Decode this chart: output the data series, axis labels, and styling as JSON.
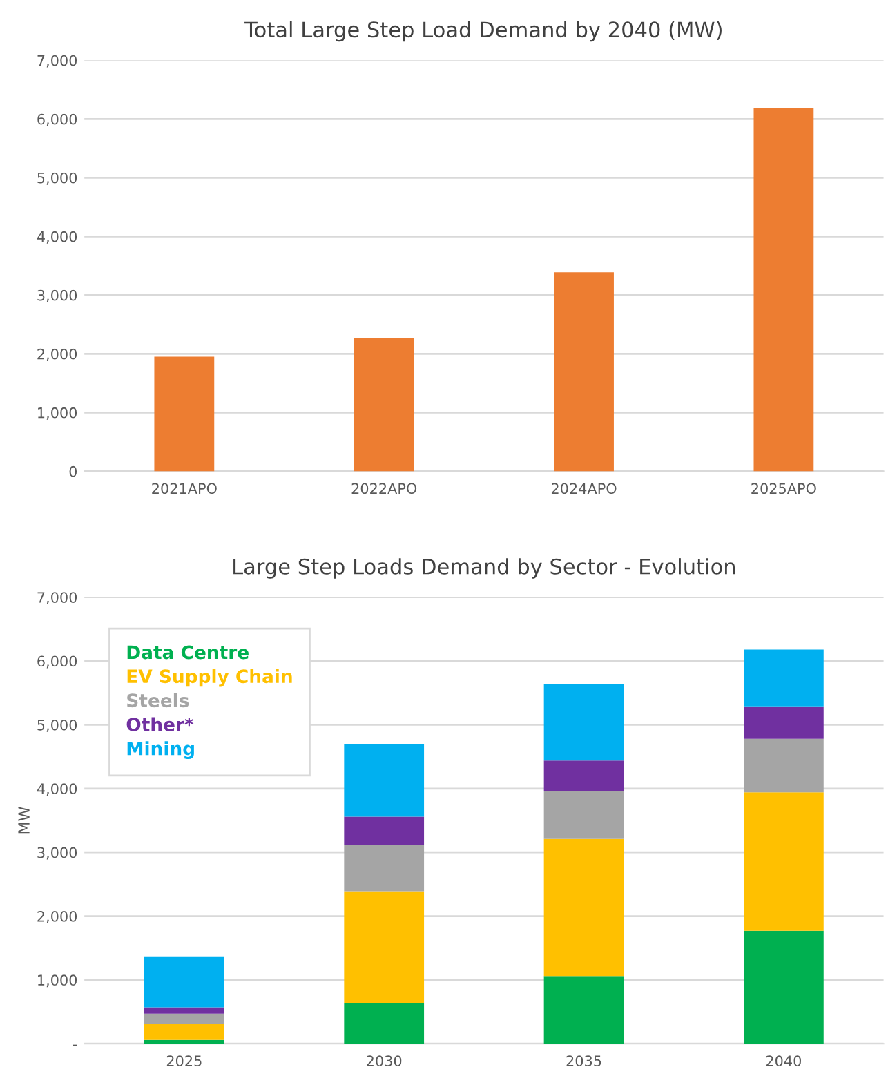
{
  "chart_data": [
    {
      "type": "bar",
      "title": "Total Large Step Load Demand by 2040 (MW)",
      "categories": [
        "2021APO",
        "2022APO",
        "2024APO",
        "2025APO"
      ],
      "values": [
        1950,
        2270,
        3390,
        6180
      ],
      "color": "#ed7d31",
      "ylim": [
        0,
        7000
      ],
      "yticks": [
        {
          "value": 0,
          "label": "0"
        },
        {
          "value": 1000,
          "label": "1,000"
        },
        {
          "value": 2000,
          "label": "2,000"
        },
        {
          "value": 3000,
          "label": "3,000"
        },
        {
          "value": 4000,
          "label": "4,000"
        },
        {
          "value": 5000,
          "label": "5,000"
        },
        {
          "value": 6000,
          "label": "6,000"
        },
        {
          "value": 7000,
          "label": "7,000"
        }
      ],
      "grid": "y",
      "legend": false
    },
    {
      "type": "bar",
      "title": "Large Step Loads Demand by Sector - Evolution",
      "ylabel": "MW",
      "categories": [
        "2025",
        "2030",
        "2035",
        "2040"
      ],
      "stacked": true,
      "series": [
        {
          "name": "Data Centre",
          "color": "#00b050",
          "values": [
            60,
            640,
            1060,
            1770
          ]
        },
        {
          "name": "EV Supply Chain",
          "color": "#ffc000",
          "values": [
            250,
            1750,
            2150,
            2170
          ]
        },
        {
          "name": "Steels",
          "color": "#a5a5a5",
          "values": [
            160,
            730,
            750,
            840
          ]
        },
        {
          "name": "Other*",
          "color": "#7030a0",
          "values": [
            100,
            440,
            480,
            510
          ]
        },
        {
          "name": "Mining",
          "color": "#00b0f0",
          "values": [
            800,
            1130,
            1200,
            890
          ]
        }
      ],
      "ylim": [
        0,
        7000
      ],
      "yticks": [
        {
          "value": 0,
          "label": "-"
        },
        {
          "value": 1000,
          "label": "1,000"
        },
        {
          "value": 2000,
          "label": "2,000"
        },
        {
          "value": 3000,
          "label": "3,000"
        },
        {
          "value": 4000,
          "label": "4,000"
        },
        {
          "value": 5000,
          "label": "5,000"
        },
        {
          "value": 6000,
          "label": "6,000"
        },
        {
          "value": 7000,
          "label": "7,000"
        }
      ],
      "grid": "y",
      "legend": "top left"
    }
  ]
}
